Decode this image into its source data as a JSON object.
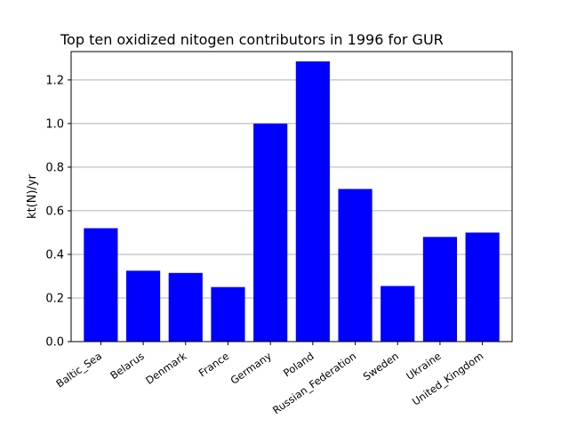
{
  "chart_data": {
    "type": "bar",
    "title": "Top ten oxidized nitogen contributors in 1996 for  GUR",
    "xlabel": "",
    "ylabel": "kt(N)/yr",
    "categories": [
      "Baltic_Sea",
      "Belarus",
      "Denmark",
      "France",
      "Germany",
      "Poland",
      "Russian_Federation",
      "Sweden",
      "Ukraine",
      "United_Kingdom"
    ],
    "values": [
      0.52,
      0.325,
      0.315,
      0.25,
      1.0,
      1.285,
      0.7,
      0.255,
      0.48,
      0.5
    ],
    "ylim": [
      0,
      1.33
    ],
    "yticks": [
      0.0,
      0.2,
      0.4,
      0.6,
      0.8,
      1.0,
      1.2
    ],
    "ytick_labels": [
      "0.0",
      "0.2",
      "0.4",
      "0.6",
      "0.8",
      "1.0",
      "1.2"
    ],
    "grid": "y",
    "bar_color": "#0000ff",
    "grid_color": "#b0b0b0"
  }
}
